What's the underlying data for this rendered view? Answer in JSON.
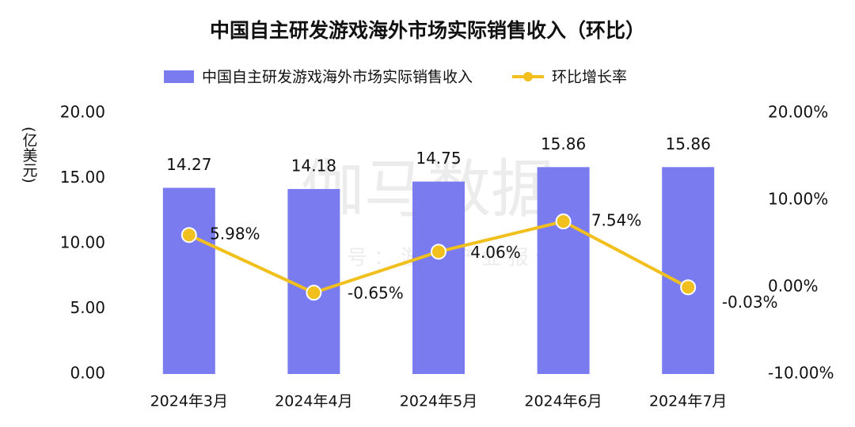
{
  "chart_data": {
    "type": "combo",
    "title": "中国自主研发游戏海外市场实际销售收入（环比）",
    "y_label": "(亿美元)",
    "watermark": "伽马数据",
    "watermark_sub": "微信号：游戏产业报告",
    "categories": [
      "2024年3月",
      "2024年4月",
      "2024年5月",
      "2024年6月",
      "2024年7月"
    ],
    "series": [
      {
        "name": "中国自主研发游戏海外市场实际销售收入",
        "type": "bar",
        "color": "#7b7bf0",
        "values": [
          14.27,
          14.18,
          14.75,
          15.86,
          15.86
        ]
      },
      {
        "name": "环比增长率",
        "type": "line",
        "axis": "y2",
        "color": "#f2c01e",
        "values": [
          5.98,
          -0.65,
          4.06,
          7.54,
          -0.03
        ],
        "value_labels": [
          "5.98%",
          "-0.65%",
          "4.06%",
          "7.54%",
          "-0.03%"
        ]
      }
    ],
    "ylim": [
      0,
      20
    ],
    "yticks": [
      {
        "value": 0,
        "label": "0.00"
      },
      {
        "value": 5,
        "label": "5.00"
      },
      {
        "value": 10,
        "label": "10.00"
      },
      {
        "value": 15,
        "label": "15.00"
      },
      {
        "value": 20,
        "label": "20.00"
      }
    ],
    "y2lim": [
      -10,
      20
    ],
    "y2ticks": [
      {
        "value": -10,
        "label": "-10.00%"
      },
      {
        "value": 0,
        "label": "0.00%"
      },
      {
        "value": 10,
        "label": "10.00%"
      },
      {
        "value": 20,
        "label": "20.00%"
      }
    ],
    "legend": "top"
  }
}
